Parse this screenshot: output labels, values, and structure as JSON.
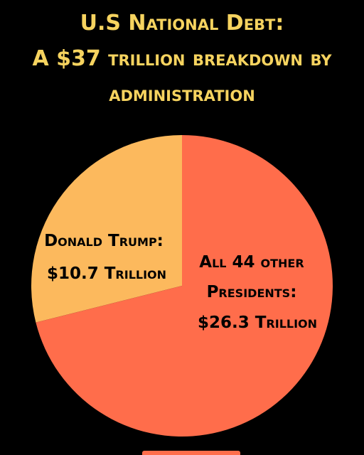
{
  "colors": {
    "background": "#000000",
    "title": "#f6d35f",
    "label_text": "#000000",
    "bottom_bar": "#ff6d4b"
  },
  "chart_data": {
    "type": "pie",
    "title_lines": [
      "U.S National Debt:",
      "A $37 trillion breakdown by",
      "administration"
    ],
    "total": 37,
    "slices": [
      {
        "label_lines": [
          "Donald Trump:",
          "$10.7 Trillion"
        ],
        "value": 10.7,
        "color": "#fcb95d"
      },
      {
        "label_lines": [
          "All 44 other",
          "Presidents:",
          "$26.3 Trillion"
        ],
        "value": 26.3,
        "color": "#ff6d4b"
      }
    ]
  }
}
